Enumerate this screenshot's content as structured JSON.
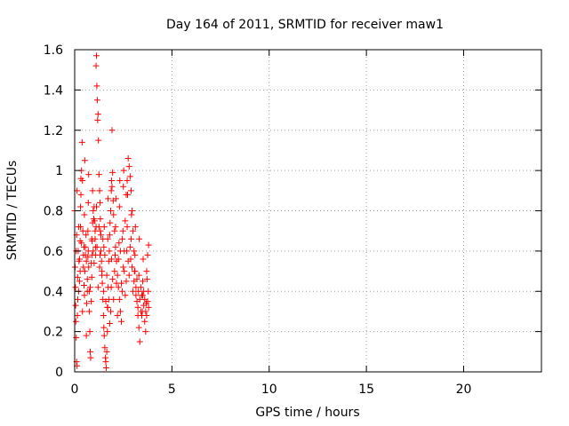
{
  "chart_data": {
    "type": "scatter",
    "title": "Day 164 of 2011, SRMTID for receiver maw1",
    "xlabel": "GPS time / hours",
    "ylabel": "SRMTID / TECUs",
    "xlim": [
      0,
      24
    ],
    "ylim": [
      0,
      1.6
    ],
    "x_ticks": [
      0,
      5,
      10,
      15,
      20
    ],
    "x_tick_labels": [
      "0",
      "5",
      "10",
      "15",
      "20"
    ],
    "y_ticks": [
      0,
      0.2,
      0.4,
      0.6,
      0.8,
      1.0,
      1.2,
      1.4,
      1.6
    ],
    "y_tick_labels": [
      "0",
      "0.2",
      "0.4",
      "0.6",
      "0.8",
      "1",
      "1.2",
      "1.4",
      "1.6"
    ],
    "grid": true,
    "marker": "+",
    "color": "#ff0000",
    "series": [
      {
        "points": [
          [
            0.0,
            0.8
          ],
          [
            0.02,
            0.52
          ],
          [
            0.04,
            0.42
          ],
          [
            0.06,
            0.25
          ],
          [
            0.08,
            0.17
          ],
          [
            0.1,
            0.05
          ],
          [
            0.12,
            0.03
          ],
          [
            0.14,
            0.28
          ],
          [
            0.16,
            0.36
          ],
          [
            0.18,
            0.6
          ],
          [
            0.2,
            0.72
          ],
          [
            0.22,
            0.55
          ],
          [
            0.25,
            0.45
          ],
          [
            0.28,
            0.65
          ],
          [
            0.3,
            0.82
          ],
          [
            0.32,
            0.88
          ],
          [
            0.35,
            1.0
          ],
          [
            0.38,
            1.14
          ],
          [
            0.4,
            0.95
          ],
          [
            0.42,
            0.7
          ],
          [
            0.45,
            0.58
          ],
          [
            0.48,
            0.43
          ],
          [
            0.5,
            0.38
          ],
          [
            0.52,
            0.5
          ],
          [
            0.55,
            0.62
          ],
          [
            0.58,
            0.68
          ],
          [
            0.6,
            0.55
          ],
          [
            0.62,
            0.34
          ],
          [
            0.65,
            0.4
          ],
          [
            0.68,
            0.57
          ],
          [
            0.7,
            0.6
          ],
          [
            0.72,
            0.52
          ],
          [
            0.75,
            0.3
          ],
          [
            0.78,
            0.2
          ],
          [
            0.8,
            0.1
          ],
          [
            0.82,
            0.07
          ],
          [
            0.85,
            0.35
          ],
          [
            0.88,
            0.47
          ],
          [
            0.9,
            0.65
          ],
          [
            0.92,
            0.74
          ],
          [
            0.95,
            0.8
          ],
          [
            0.98,
            0.76
          ],
          [
            1.0,
            0.82
          ],
          [
            1.02,
            0.75
          ],
          [
            1.05,
            0.7
          ],
          [
            1.08,
            0.62
          ],
          [
            1.1,
            1.52
          ],
          [
            1.12,
            1.57
          ],
          [
            1.14,
            1.42
          ],
          [
            1.16,
            1.35
          ],
          [
            1.18,
            1.25
          ],
          [
            1.2,
            1.28
          ],
          [
            1.22,
            1.15
          ],
          [
            1.25,
            0.98
          ],
          [
            1.28,
            0.9
          ],
          [
            1.3,
            0.84
          ],
          [
            1.32,
            0.7
          ],
          [
            1.35,
            0.6
          ],
          [
            1.38,
            0.55
          ],
          [
            1.4,
            0.5
          ],
          [
            1.42,
            0.44
          ],
          [
            1.45,
            0.36
          ],
          [
            1.48,
            0.28
          ],
          [
            1.5,
            0.22
          ],
          [
            1.52,
            0.18
          ],
          [
            1.55,
            0.12
          ],
          [
            1.58,
            0.07
          ],
          [
            1.6,
            0.05
          ],
          [
            1.62,
            0.02
          ],
          [
            1.65,
            0.1
          ],
          [
            1.68,
            0.2
          ],
          [
            1.7,
            0.32
          ],
          [
            1.72,
            0.42
          ],
          [
            1.75,
            0.55
          ],
          [
            1.78,
            0.6
          ],
          [
            1.8,
            0.68
          ],
          [
            1.82,
            0.74
          ],
          [
            1.85,
            0.8
          ],
          [
            1.88,
            0.9
          ],
          [
            1.9,
            0.95
          ],
          [
            1.92,
            1.2
          ],
          [
            1.95,
            0.99
          ],
          [
            1.98,
            0.85
          ],
          [
            2.0,
            0.78
          ],
          [
            2.05,
            0.7
          ],
          [
            2.1,
            0.62
          ],
          [
            2.15,
            0.55
          ],
          [
            2.2,
            0.48
          ],
          [
            2.25,
            0.42
          ],
          [
            2.3,
            0.36
          ],
          [
            2.35,
            0.3
          ],
          [
            2.4,
            0.25
          ],
          [
            2.45,
            0.4
          ],
          [
            2.5,
            0.52
          ],
          [
            2.55,
            0.6
          ],
          [
            2.6,
            0.75
          ],
          [
            2.65,
            0.88
          ],
          [
            2.7,
            0.95
          ],
          [
            2.75,
            1.06
          ],
          [
            2.8,
            1.02
          ],
          [
            2.85,
            0.97
          ],
          [
            2.9,
            0.9
          ],
          [
            2.95,
            0.8
          ],
          [
            3.0,
            0.7
          ],
          [
            3.05,
            0.6
          ],
          [
            3.1,
            0.5
          ],
          [
            3.15,
            0.42
          ],
          [
            3.2,
            0.35
          ],
          [
            3.25,
            0.28
          ],
          [
            3.3,
            0.22
          ],
          [
            3.35,
            0.15
          ],
          [
            3.4,
            0.3
          ],
          [
            3.45,
            0.38
          ],
          [
            3.5,
            0.45
          ],
          [
            3.55,
            0.33
          ],
          [
            3.6,
            0.25
          ],
          [
            3.65,
            0.3
          ],
          [
            3.7,
            0.5
          ],
          [
            3.75,
            0.58
          ],
          [
            3.8,
            0.63
          ],
          [
            0.05,
            0.33
          ],
          [
            0.15,
            0.47
          ],
          [
            0.25,
            0.56
          ],
          [
            0.35,
            0.64
          ],
          [
            0.45,
            0.52
          ],
          [
            0.55,
            0.58
          ],
          [
            0.65,
            0.46
          ],
          [
            0.75,
            0.4
          ],
          [
            0.85,
            0.54
          ],
          [
            0.95,
            0.6
          ],
          [
            1.05,
            0.66
          ],
          [
            1.15,
            0.62
          ],
          [
            1.25,
            0.72
          ],
          [
            1.35,
            0.68
          ],
          [
            1.45,
            0.66
          ],
          [
            1.55,
            0.58
          ],
          [
            1.65,
            0.48
          ],
          [
            1.75,
            0.36
          ],
          [
            1.85,
            0.3
          ],
          [
            1.95,
            0.46
          ],
          [
            2.05,
            0.5
          ],
          [
            2.15,
            0.44
          ],
          [
            2.25,
            0.56
          ],
          [
            2.35,
            0.6
          ],
          [
            2.45,
            0.66
          ],
          [
            2.55,
            0.5
          ],
          [
            2.65,
            0.45
          ],
          [
            2.75,
            0.55
          ],
          [
            2.85,
            0.62
          ],
          [
            2.95,
            0.52
          ],
          [
            3.05,
            0.45
          ],
          [
            3.15,
            0.38
          ],
          [
            3.25,
            0.32
          ],
          [
            3.35,
            0.36
          ],
          [
            3.45,
            0.28
          ],
          [
            3.55,
            0.4
          ],
          [
            3.65,
            0.2
          ],
          [
            3.75,
            0.35
          ],
          [
            0.1,
            0.68
          ],
          [
            0.3,
            0.72
          ],
          [
            0.5,
            0.78
          ],
          [
            0.7,
            0.84
          ],
          [
            0.9,
            0.58
          ],
          [
            1.1,
            0.72
          ],
          [
            1.3,
            0.58
          ],
          [
            1.5,
            0.62
          ],
          [
            1.7,
            0.66
          ],
          [
            1.9,
            0.56
          ],
          [
            2.1,
            0.72
          ],
          [
            2.3,
            0.82
          ],
          [
            2.5,
            0.92
          ],
          [
            2.7,
            0.72
          ],
          [
            2.9,
            0.66
          ],
          [
            3.1,
            0.58
          ],
          [
            3.3,
            0.48
          ],
          [
            3.5,
            0.38
          ],
          [
            3.7,
            0.28
          ],
          [
            0.2,
            0.4
          ],
          [
            0.4,
            0.3
          ],
          [
            0.6,
            0.18
          ],
          [
            0.8,
            0.42
          ],
          [
            1.0,
            0.54
          ],
          [
            1.2,
            0.42
          ],
          [
            1.4,
            0.48
          ],
          [
            1.6,
            0.35
          ],
          [
            1.8,
            0.24
          ],
          [
            2.0,
            0.36
          ],
          [
            2.2,
            0.28
          ],
          [
            2.4,
            0.44
          ],
          [
            2.6,
            0.38
          ],
          [
            2.8,
            0.48
          ],
          [
            3.0,
            0.4
          ],
          [
            3.2,
            0.46
          ],
          [
            3.4,
            0.42
          ],
          [
            3.6,
            0.36
          ],
          [
            3.8,
            0.32
          ],
          [
            0.12,
            0.9
          ],
          [
            0.32,
            0.96
          ],
          [
            0.52,
            1.05
          ],
          [
            0.72,
            0.98
          ],
          [
            0.92,
            0.9
          ],
          [
            1.12,
            0.82
          ],
          [
            1.32,
            0.76
          ],
          [
            1.52,
            0.72
          ],
          [
            1.72,
            0.86
          ],
          [
            1.92,
            0.92
          ],
          [
            2.12,
            0.86
          ],
          [
            2.32,
            0.95
          ],
          [
            2.52,
            1.0
          ],
          [
            2.72,
            0.88
          ],
          [
            2.92,
            0.78
          ],
          [
            3.12,
            0.72
          ],
          [
            3.32,
            0.66
          ],
          [
            3.52,
            0.56
          ],
          [
            3.72,
            0.46
          ],
          [
            0.08,
            0.6
          ],
          [
            0.28,
            0.5
          ],
          [
            0.48,
            0.62
          ],
          [
            0.68,
            0.7
          ],
          [
            0.88,
            0.66
          ],
          [
            1.08,
            0.58
          ],
          [
            1.28,
            0.52
          ],
          [
            1.48,
            0.4
          ],
          [
            1.68,
            0.32
          ],
          [
            1.88,
            0.42
          ],
          [
            2.08,
            0.58
          ],
          [
            2.28,
            0.64
          ],
          [
            2.48,
            0.7
          ],
          [
            2.68,
            0.6
          ],
          [
            2.88,
            0.56
          ],
          [
            3.08,
            0.5
          ],
          [
            3.28,
            0.4
          ],
          [
            3.48,
            0.3
          ],
          [
            3.68,
            0.34
          ],
          [
            3.78,
            0.4
          ]
        ]
      }
    ]
  }
}
